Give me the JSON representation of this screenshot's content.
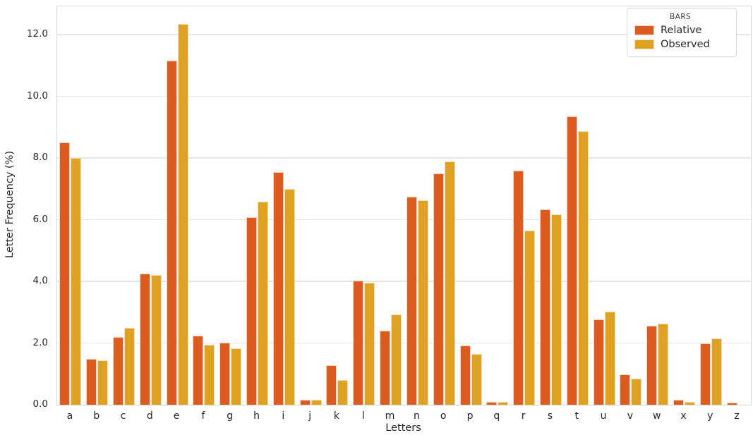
{
  "figure": {
    "ylabel": "Letter Frequency (%)",
    "xlabel": "Letters"
  },
  "legend": {
    "title": "BARS",
    "entries": [
      {
        "label": "Relative",
        "color": "#dd5b21"
      },
      {
        "label": "Observed",
        "color": "#dfa122"
      }
    ]
  },
  "colors": {
    "relative_bar": "#dd5b21",
    "observed_bar": "#dfa122",
    "grid": "#e5e5e5",
    "spine": "#d6d6d6",
    "text": "#262626",
    "background": "#ffffff"
  },
  "chart_data": {
    "type": "bar",
    "title": "",
    "xlabel": "Letters",
    "ylabel": "Letter Frequency (%)",
    "categories": [
      "a",
      "b",
      "c",
      "d",
      "e",
      "f",
      "g",
      "h",
      "i",
      "j",
      "k",
      "l",
      "m",
      "n",
      "o",
      "p",
      "q",
      "r",
      "s",
      "t",
      "u",
      "v",
      "w",
      "x",
      "y",
      "z"
    ],
    "series": [
      {
        "name": "Relative",
        "color": "#dd5b21",
        "values": [
          8.5,
          1.49,
          2.2,
          4.25,
          11.16,
          2.23,
          2.02,
          6.09,
          7.55,
          0.15,
          1.29,
          4.03,
          2.41,
          6.75,
          7.51,
          1.93,
          0.1,
          7.59,
          6.33,
          9.36,
          2.76,
          0.98,
          2.56,
          0.15,
          1.99,
          0.08
        ]
      },
      {
        "name": "Observed",
        "color": "#dfa122",
        "values": [
          8.0,
          1.45,
          2.5,
          4.2,
          12.35,
          1.95,
          1.82,
          6.58,
          7.0,
          0.16,
          0.8,
          3.95,
          2.93,
          6.63,
          7.88,
          1.65,
          0.1,
          5.66,
          6.18,
          8.87,
          3.01,
          0.85,
          2.64,
          0.1,
          2.16,
          0.0
        ]
      }
    ],
    "ylim": [
      0,
      12.92
    ],
    "yticks": [
      0.0,
      2.0,
      4.0,
      6.0,
      8.0,
      10.0,
      12.0
    ],
    "ytick_labels": [
      "0.0",
      "2.0",
      "4.0",
      "6.0",
      "8.0",
      "10.0",
      "12.0"
    ],
    "grid": true,
    "legend_position": "upper right",
    "legend_title": "BARS"
  }
}
